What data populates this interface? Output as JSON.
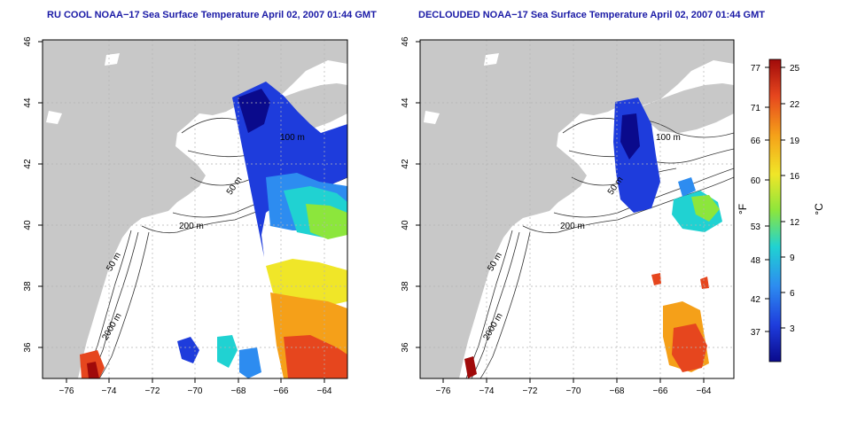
{
  "maps": [
    {
      "title": "RU COOL NOAA−17 Sea Surface Temperature April 02, 2007 01:44 GMT",
      "contour_labels": [
        "100 m",
        "50 m",
        "200 m",
        "50 m",
        "2000 m",
        "100 m"
      ]
    },
    {
      "title": "DECLOUDED NOAA−17 Sea Surface Temperature April 02, 2007 01:44 GMT",
      "contour_labels": [
        "100 m",
        "50 m",
        "200 m",
        "50 m",
        "2000 m",
        "100 m"
      ]
    }
  ],
  "axes": {
    "x_ticks": [
      "−76",
      "−74",
      "−72",
      "−70",
      "−68",
      "−66",
      "−64"
    ],
    "y_ticks": [
      "46",
      "44",
      "42",
      "40",
      "38",
      "36"
    ]
  },
  "colorbar": {
    "left_unit": "°F",
    "right_unit": "°C",
    "fahrenheit_ticks": [
      "77",
      "71",
      "66",
      "60",
      "53",
      "48",
      "42",
      "37"
    ],
    "celsius_ticks": [
      "25",
      "22",
      "19",
      "16",
      "12",
      "9",
      "6",
      "3"
    ],
    "colors": [
      "#0a0a8c",
      "#1e3cdc",
      "#2d8cf0",
      "#20d2d2",
      "#8ce63c",
      "#f0e628",
      "#f5a019",
      "#e6461e",
      "#a00a0a"
    ]
  },
  "colors": {
    "land": "#c8c8c8",
    "title": "#1a1aa6",
    "contour": "#333333"
  }
}
